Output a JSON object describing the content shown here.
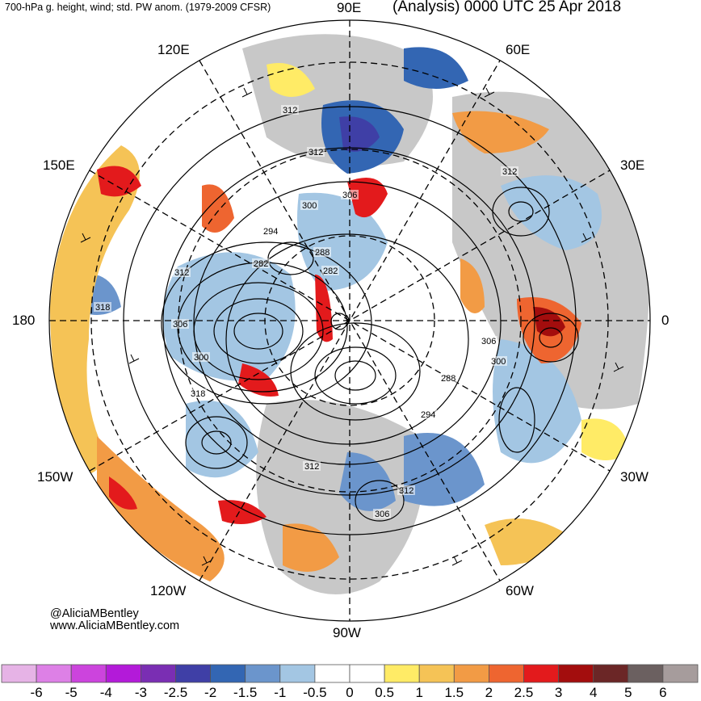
{
  "header": {
    "left_title": "700-hPa g. height, wind; std. PW anom. (1979-2009 CFSR)",
    "right_title": "(Analysis) 0000 UTC 25 Apr 2018"
  },
  "longitude_labels": {
    "e90": "90E",
    "e60": "60E",
    "e30": "30E",
    "zero": "0",
    "w30": "30W",
    "w60": "60W",
    "w90": "90W",
    "w120": "120W",
    "w150": "150W",
    "lon180": "180",
    "e150": "150E",
    "e120": "120E"
  },
  "contour_labels": [
    "312",
    "312",
    "312",
    "306",
    "300",
    "294",
    "288",
    "282",
    "282",
    "312",
    "318",
    "306",
    "300",
    "318",
    "306",
    "300",
    "288",
    "294",
    "312",
    "312",
    "306"
  ],
  "credits": {
    "handle": "@AliciaMBentley",
    "website": "www.AliciaMBentley.com"
  },
  "colorbar": {
    "colors": [
      "#e6b3e6",
      "#dd80e6",
      "#cc44dd",
      "#b31ad9",
      "#7a2eb3",
      "#3f3fa6",
      "#3366b3",
      "#6b95cc",
      "#a3c6e3",
      "#ffffff",
      "#ffffff",
      "#ffeb66",
      "#f5c356",
      "#f29b45",
      "#ee6530",
      "#e31a1c",
      "#a30d0d",
      "#6b2626",
      "#6b6060",
      "#a69c9c"
    ],
    "labels": [
      "-6",
      "-5",
      "-4",
      "-3",
      "-2.5",
      "-2",
      "-1.5",
      "-1",
      "-0.5",
      "0",
      "0.5",
      "1",
      "1.5",
      "2",
      "2.5",
      "3",
      "4",
      "5",
      "6"
    ]
  }
}
